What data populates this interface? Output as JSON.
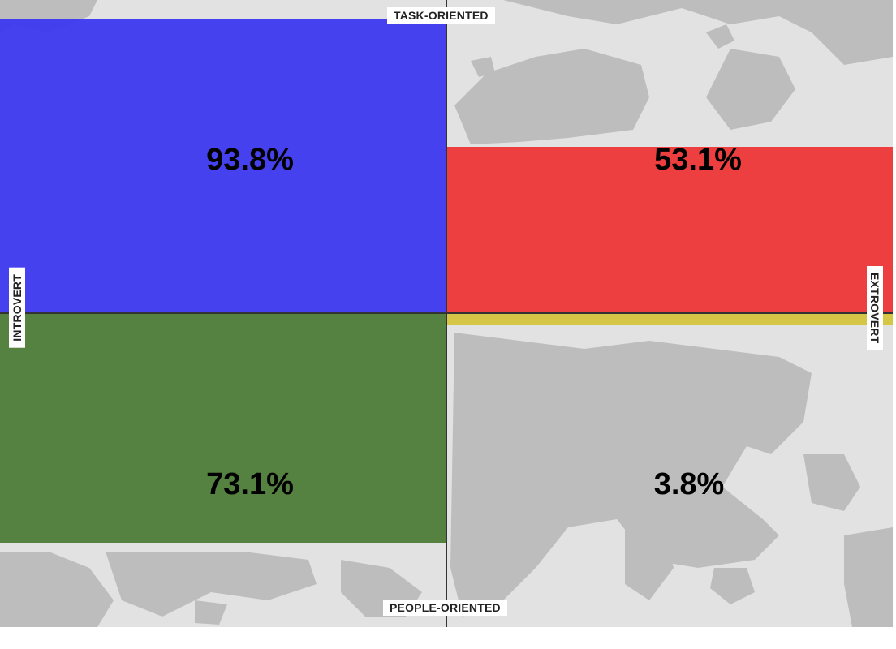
{
  "axes": {
    "top": "TASK-ORIENTED",
    "bottom": "PEOPLE-ORIENTED",
    "left": "INTROVERT",
    "right": "EXTROVERT"
  },
  "chart_data": {
    "type": "quadrant",
    "quadrants": [
      {
        "position": "top-left",
        "value": 93.8,
        "label": "93.8%",
        "color": "#3a35f0"
      },
      {
        "position": "top-right",
        "value": 53.1,
        "label": "53.1%",
        "color": "#ee3333"
      },
      {
        "position": "bottom-left",
        "value": 73.1,
        "label": "73.1%",
        "color": "#4a7a35"
      },
      {
        "position": "bottom-right",
        "value": 3.8,
        "label": "3.8%",
        "color": "#d4c43a"
      }
    ],
    "max": 100
  },
  "colors": {
    "background_land": "#bdbdbd",
    "background_sea": "#e2e2e2",
    "axis": "#333333"
  }
}
